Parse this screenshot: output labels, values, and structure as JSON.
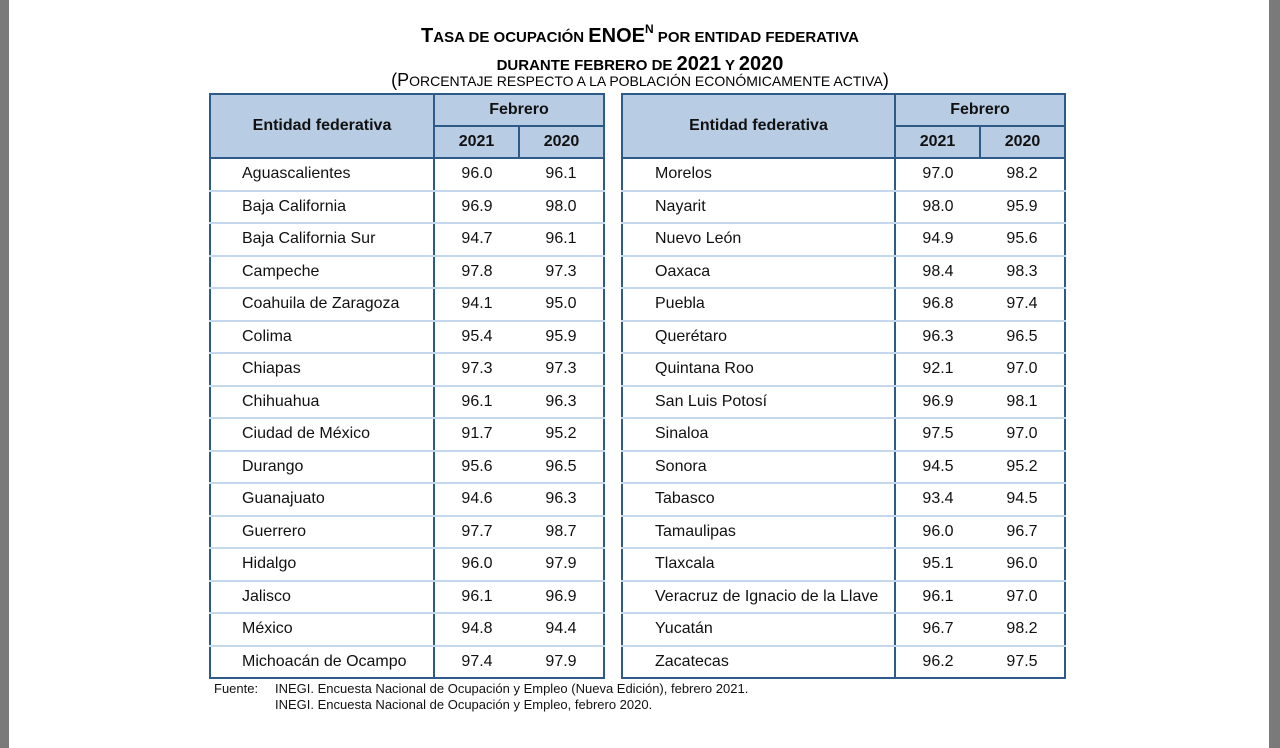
{
  "title": {
    "line1_a": "T",
    "line1_b": "ASA DE OCUPACIÓN ",
    "line1_c": "ENOE",
    "line1_sup": "N",
    "line1_d": " POR ENTIDAD FEDERATIVA",
    "line2_a": "DURANTE FEBRERO DE ",
    "line2_b": "2021",
    "line2_c": " Y ",
    "line2_d": "2020"
  },
  "subtitle": {
    "a": "(P",
    "b": "ORCENTAJE RESPECTO A LA POBLACIÓN ECONÓMICAMENTE ACTIVA",
    "c": ")"
  },
  "headers": {
    "entidad": "Entidad federativa",
    "febrero": "Febrero",
    "y2021": "2021",
    "y2020": "2020"
  },
  "left_rows": [
    {
      "name": "Aguascalientes",
      "v2021": "96.0",
      "v2020": "96.1"
    },
    {
      "name": "Baja California",
      "v2021": "96.9",
      "v2020": "98.0"
    },
    {
      "name": "Baja California Sur",
      "v2021": "94.7",
      "v2020": "96.1"
    },
    {
      "name": "Campeche",
      "v2021": "97.8",
      "v2020": "97.3"
    },
    {
      "name": "Coahuila de Zaragoza",
      "v2021": "94.1",
      "v2020": "95.0"
    },
    {
      "name": "Colima",
      "v2021": "95.4",
      "v2020": "95.9"
    },
    {
      "name": "Chiapas",
      "v2021": "97.3",
      "v2020": "97.3"
    },
    {
      "name": "Chihuahua",
      "v2021": "96.1",
      "v2020": "96.3"
    },
    {
      "name": "Ciudad de México",
      "v2021": "91.7",
      "v2020": "95.2"
    },
    {
      "name": "Durango",
      "v2021": "95.6",
      "v2020": "96.5"
    },
    {
      "name": "Guanajuato",
      "v2021": "94.6",
      "v2020": "96.3"
    },
    {
      "name": "Guerrero",
      "v2021": "97.7",
      "v2020": "98.7"
    },
    {
      "name": "Hidalgo",
      "v2021": "96.0",
      "v2020": "97.9"
    },
    {
      "name": "Jalisco",
      "v2021": "96.1",
      "v2020": "96.9"
    },
    {
      "name": "México",
      "v2021": "94.8",
      "v2020": "94.4"
    },
    {
      "name": "Michoacán de Ocampo",
      "v2021": "97.4",
      "v2020": "97.9"
    }
  ],
  "right_rows": [
    {
      "name": "Morelos",
      "v2021": "97.0",
      "v2020": "98.2"
    },
    {
      "name": "Nayarit",
      "v2021": "98.0",
      "v2020": "95.9"
    },
    {
      "name": "Nuevo León",
      "v2021": "94.9",
      "v2020": "95.6"
    },
    {
      "name": "Oaxaca",
      "v2021": "98.4",
      "v2020": "98.3"
    },
    {
      "name": "Puebla",
      "v2021": "96.8",
      "v2020": "97.4"
    },
    {
      "name": "Querétaro",
      "v2021": "96.3",
      "v2020": "96.5"
    },
    {
      "name": "Quintana Roo",
      "v2021": "92.1",
      "v2020": "97.0"
    },
    {
      "name": "San Luis Potosí",
      "v2021": "96.9",
      "v2020": "98.1"
    },
    {
      "name": "Sinaloa",
      "v2021": "97.5",
      "v2020": "97.0"
    },
    {
      "name": "Sonora",
      "v2021": "94.5",
      "v2020": "95.2"
    },
    {
      "name": "Tabasco",
      "v2021": "93.4",
      "v2020": "94.5"
    },
    {
      "name": "Tamaulipas",
      "v2021": "96.0",
      "v2020": "96.7"
    },
    {
      "name": "Tlaxcala",
      "v2021": "95.1",
      "v2020": "96.0"
    },
    {
      "name": "Veracruz de Ignacio de la Llave",
      "v2021": "96.1",
      "v2020": "97.0"
    },
    {
      "name": "Yucatán",
      "v2021": "96.7",
      "v2020": "98.2"
    },
    {
      "name": "Zacatecas",
      "v2021": "96.2",
      "v2020": "97.5"
    }
  ],
  "footnote": {
    "label": "Fuente:",
    "line1": "INEGI. Encuesta Nacional de Ocupación y Empleo (Nueva Edición), febrero 2021.",
    "line2": "INEGI. Encuesta Nacional de Ocupación y Empleo, febrero 2020."
  }
}
